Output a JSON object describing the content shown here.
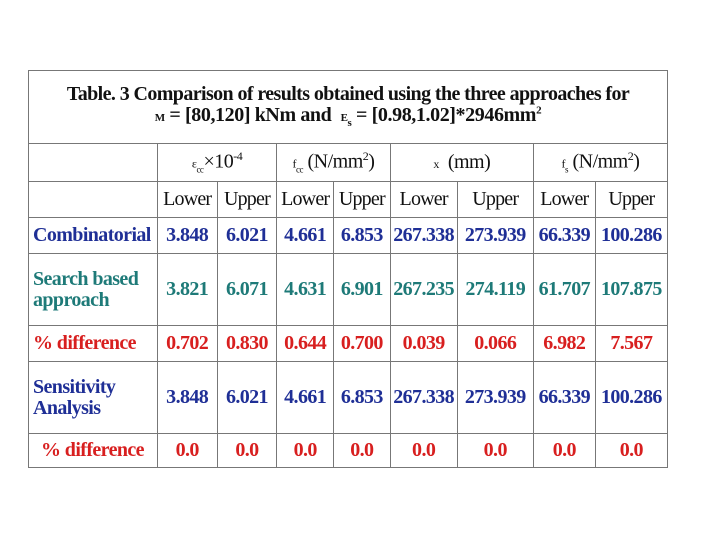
{
  "title": {
    "line1": "Table. 3 Comparison of  results obtained using the three approaches for",
    "m_symbol": "M",
    "m_range": "= [80,120] kNm and",
    "e_symbol": "E",
    "e_sub": "s",
    "e_range": "= [0.98,1.02]*2946mm",
    "e_exp": "2"
  },
  "headers": {
    "col1": {
      "sym": "ε",
      "sub": "cc",
      "times": "×10",
      "exp": "-4"
    },
    "col2": {
      "sym": "f",
      "sub": "cc",
      "unit": "(N/mm",
      "exp": "2",
      "close": ")"
    },
    "col3": {
      "sym": "x",
      "unit": "(mm)"
    },
    "col4": {
      "sym": "f",
      "sub": "s",
      "unit": "(N/mm",
      "exp": "2",
      "close": ")"
    }
  },
  "bounds": [
    "Lower",
    "Upper",
    "Lower",
    "Upper",
    "Lower",
    "Upper",
    "Lower",
    "Upper"
  ],
  "rows": [
    {
      "label": "Combinatorial",
      "values": [
        "3.848",
        "6.021",
        "4.661",
        "6.853",
        "267.338",
        "273.939",
        "66.339",
        "100.286"
      ]
    },
    {
      "label_line1": "Search based",
      "label_line2": "approach",
      "values": [
        "3.821",
        "6.071",
        "4.631",
        "6.901",
        "267.235",
        "274.119",
        "61.707",
        "107.875"
      ]
    },
    {
      "label": "% difference",
      "values": [
        "0.702",
        "0.830",
        "0.644",
        "0.700",
        "0.039",
        "0.066",
        "6.982",
        "7.567"
      ]
    },
    {
      "label_line1": "Sensitivity",
      "label_line2": "Analysis",
      "values": [
        "3.848",
        "6.021",
        "4.661",
        "6.853",
        "267.338",
        "273.939",
        "66.339",
        "100.286"
      ]
    },
    {
      "label": "% difference",
      "values": [
        "0.0",
        "0.0",
        "0.0",
        "0.0",
        "0.0",
        "0.0",
        "0.0",
        "0.0"
      ]
    }
  ],
  "colors": {
    "combinatorial": "#1f2f96",
    "search": "#1e7a78",
    "difference": "#d81f1f",
    "sensitivity": "#1f2f96"
  }
}
